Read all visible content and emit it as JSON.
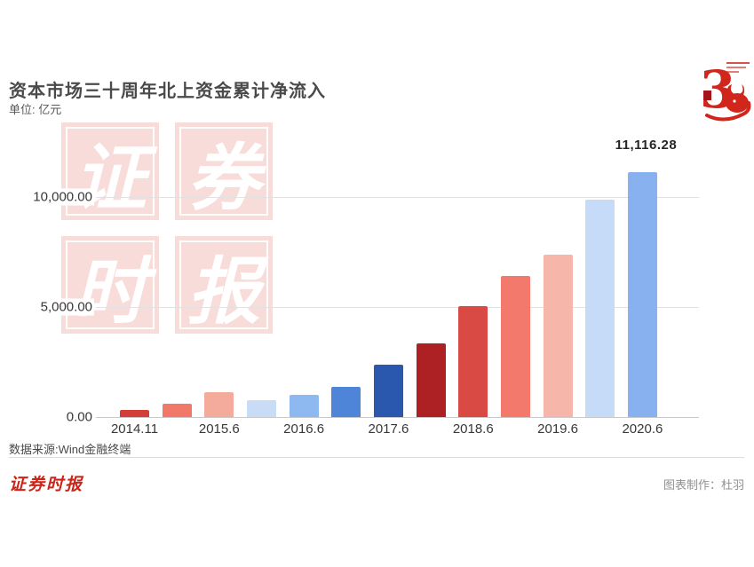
{
  "header": {
    "title": "资本市场三十周年北上资金累计净流入",
    "subtitle": "单位: 亿元"
  },
  "logo30": {
    "glyph": "3",
    "color": "#d0261b"
  },
  "watermark": {
    "chars": [
      "证",
      "券",
      "时",
      "报"
    ],
    "tile_color": "#f8dcda",
    "char_color": "#ffffff"
  },
  "chart_data": {
    "type": "bar",
    "title": "资本市场三十周年北上资金累计净流入",
    "ylabel": "亿元",
    "categories": [
      "2014.11",
      "",
      "2015.6",
      "",
      "2016.6",
      "",
      "2017.6",
      "",
      "2018.6",
      "",
      "2019.6",
      "",
      "2020.6"
    ],
    "values": [
      335,
      605,
      1140,
      765,
      1010,
      1385,
      2380,
      3360,
      5040,
      6400,
      7365,
      9865,
      11116.28
    ],
    "bar_colors": [
      "#d23f3b",
      "#f0796a",
      "#f5ab9b",
      "#c8dcf6",
      "#8db9f0",
      "#4f85d8",
      "#2a58ae",
      "#ad2024",
      "#d94a45",
      "#f2796c",
      "#f7b6aa",
      "#c5dbf7",
      "#87b2ef"
    ],
    "y_ticks": [
      {
        "value": 10000,
        "label": "10,000.00"
      },
      {
        "value": 5000,
        "label": "5,000.00"
      },
      {
        "value": 0,
        "label": "0.00"
      }
    ],
    "ylim": [
      0,
      13300
    ],
    "grid": "horizontal",
    "annotation": {
      "text": "11,116.28",
      "bar_index": 12
    }
  },
  "footer": {
    "source": "数据来源:Wind金融终端",
    "brand": "证券时报",
    "credit": "图表制作：杜羽"
  }
}
